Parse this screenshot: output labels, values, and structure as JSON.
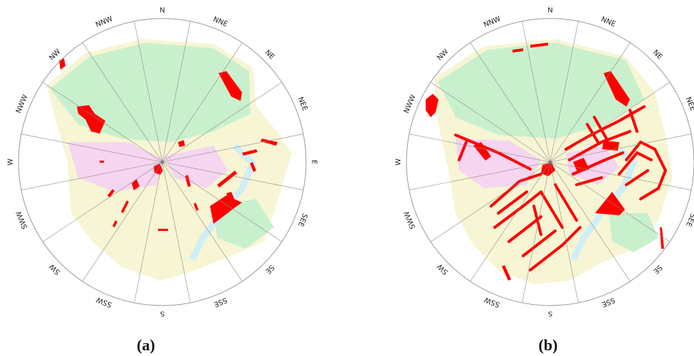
{
  "directions": [
    "N",
    "NNE",
    "NE",
    "NEE",
    "E",
    "SEE",
    "SE",
    "SSE",
    "S",
    "SSW",
    "SW",
    "SWW",
    "W",
    "NWW",
    "NW",
    "NNW"
  ],
  "panels": [
    {
      "label": "(a)"
    },
    {
      "label": "(b)"
    }
  ],
  "colors": {
    "highlight": "#ff0000",
    "green_space": "#c9f0cc",
    "urban": "#f7f5d4",
    "pink_zone": "#f5d5ef",
    "water": "#cfeef5",
    "spoke": "#8a8a8a",
    "circle": "#9a9a9a"
  }
}
